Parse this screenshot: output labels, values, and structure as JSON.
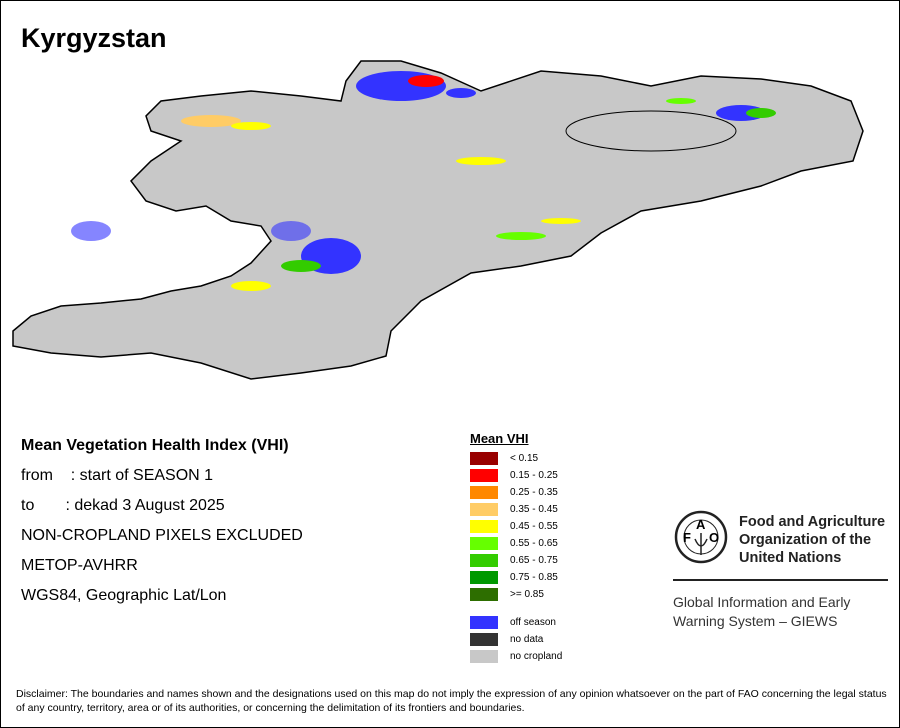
{
  "title": "Kyrgyzstan",
  "info": {
    "heading": "Mean Vegetation Health Index (VHI)",
    "from": "from    : start of SEASON 1",
    "to": "to       : dekad 3 August 2025",
    "excluded": "NON-CROPLAND PIXELS EXCLUDED",
    "sensor": "METOP-AVHRR",
    "projection": "WGS84, Geographic Lat/Lon"
  },
  "legend": {
    "title": "Mean VHI",
    "classes": [
      {
        "label": "< 0.15",
        "color": "#990000"
      },
      {
        "label": "0.15 - 0.25",
        "color": "#ff0000"
      },
      {
        "label": "0.25 - 0.35",
        "color": "#ff8800"
      },
      {
        "label": "0.35 - 0.45",
        "color": "#ffcc66"
      },
      {
        "label": "0.45 - 0.55",
        "color": "#ffff00"
      },
      {
        "label": "0.55 - 0.65",
        "color": "#66ff00"
      },
      {
        "label": "0.65 - 0.75",
        "color": "#33cc00"
      },
      {
        "label": "0.75 - 0.85",
        "color": "#009900"
      },
      {
        "label": ">= 0.85",
        "color": "#2d6e00"
      }
    ],
    "other": [
      {
        "label": "off season",
        "color": "#3333ff"
      },
      {
        "label": "no data",
        "color": "#333333"
      },
      {
        "label": "no cropland",
        "color": "#c8c8c8"
      }
    ]
  },
  "fao": {
    "name_lines": [
      "Food and Agriculture",
      "Organization of the",
      "United Nations"
    ],
    "giews_lines": [
      "Global Information and Early",
      "Warning System – GIEWS"
    ],
    "logo_text": "FAO FIAT PANIS"
  },
  "disclaimer": "Disclaimer: The boundaries and names shown and the designations used on this map do not imply the expression of any opinion whatsoever on the part of FAO concerning the legal status of any country, territory, area or of its authorities, or concerning the delimitation of its frontiers and boundaries."
}
